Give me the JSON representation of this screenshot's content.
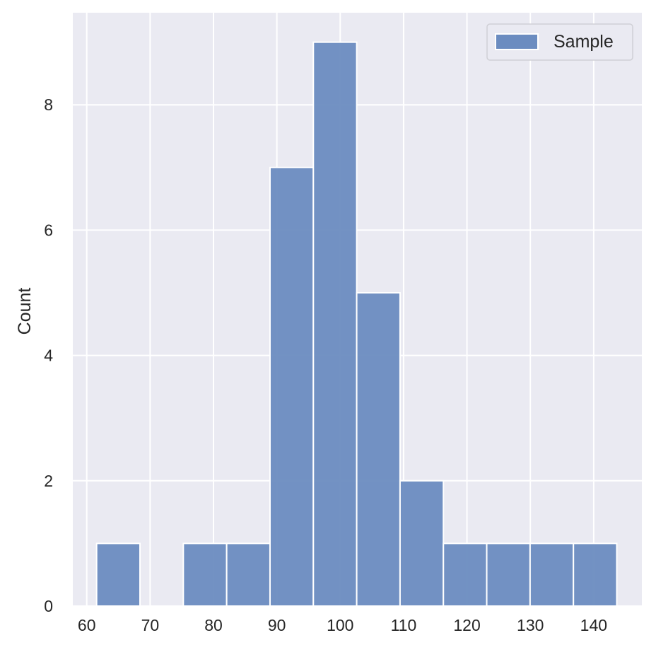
{
  "chart_data": {
    "type": "bar",
    "title": "",
    "xlabel": "",
    "ylabel": "Count",
    "bin_edges": [
      61.56,
      68.4,
      75.24,
      82.08,
      88.92,
      95.76,
      102.6,
      109.44,
      116.28,
      123.12,
      129.96,
      136.8,
      143.64
    ],
    "values": [
      1,
      0,
      1,
      1,
      7,
      9,
      5,
      2,
      1,
      1,
      1,
      1
    ],
    "xlim": [
      57.8,
      147.6
    ],
    "ylim": [
      0,
      9.47
    ],
    "xticks": [
      60,
      70,
      80,
      90,
      100,
      110,
      120,
      130,
      140
    ],
    "xtick_labels": [
      "60",
      "70",
      "80",
      "90",
      "100",
      "110",
      "120",
      "130",
      "140"
    ],
    "yticks": [
      0,
      2,
      4,
      6,
      8
    ],
    "ytick_labels": [
      "0",
      "2",
      "4",
      "6",
      "8"
    ],
    "grid": true,
    "legend": {
      "placement": "top-right",
      "entries": [
        "Sample"
      ]
    },
    "colors": {
      "bar": "#6b8cc0",
      "background": "#eaeaf2",
      "grid": "#ffffff",
      "text": "#262626"
    }
  }
}
